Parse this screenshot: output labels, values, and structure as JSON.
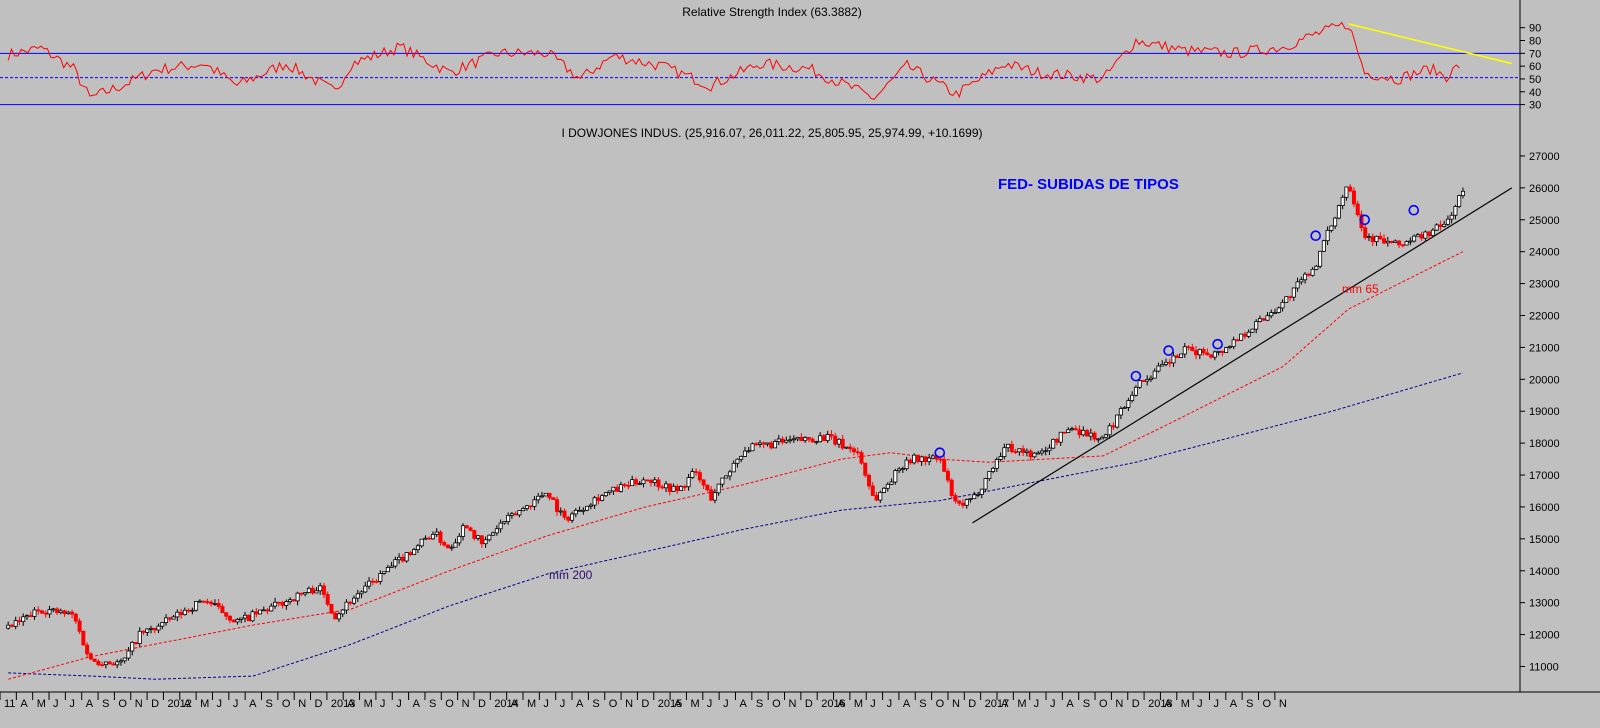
{
  "colors": {
    "background": "#c0c0c0",
    "rsi_line": "#ff0000",
    "rsi_bands": "#0000ff",
    "up_candle": "#000000",
    "down_candle": "#ff0000",
    "ma65": "#ff0000",
    "ma200": "#00008b",
    "trendline": "#000000",
    "rsi_trendline": "#ffff00",
    "annotation_blue": "#0000ff",
    "marker_circle": "#0000ff"
  },
  "rsi_panel": {
    "title": "Relative Strength Index (63.3882)",
    "ticks": [
      "90",
      "80",
      "70",
      "60",
      "50",
      "40",
      "30"
    ],
    "ylim": [
      25,
      96
    ],
    "upper_band": 70,
    "mid_band": 51,
    "lower_band": 30
  },
  "price_panel": {
    "title": "I DOWJONES INDUS. (25,916.07, 26,011.22, 25,805.95, 25,974.99, +10.1699)",
    "ticks": [
      "27000",
      "26000",
      "25000",
      "24000",
      "23000",
      "22000",
      "21000",
      "20000",
      "19000",
      "18000",
      "17000",
      "16000",
      "15000",
      "14000",
      "13000",
      "12000",
      "11000"
    ],
    "ylim": [
      10200,
      27500
    ],
    "annotation_fed": "FED- SUBIDAS DE TIPOS",
    "label_mm65": "mm 65",
    "label_mm200": "mm 200"
  },
  "x_axis": {
    "labels": [
      "11",
      "A",
      "M",
      "J",
      "J",
      "A",
      "S",
      "O",
      "N",
      "D",
      "2012",
      "A",
      "M",
      "J",
      "J",
      "A",
      "S",
      "O",
      "N",
      "D",
      "2013",
      "A",
      "M",
      "J",
      "J",
      "A",
      "S",
      "O",
      "N",
      "D",
      "2014",
      "A",
      "M",
      "J",
      "J",
      "A",
      "S",
      "O",
      "N",
      "D",
      "2015",
      "A",
      "M",
      "J",
      "J",
      "A",
      "S",
      "O",
      "N",
      "D",
      "2016",
      "A",
      "M",
      "J",
      "J",
      "A",
      "S",
      "O",
      "N",
      "D",
      "2017",
      "A",
      "M",
      "J",
      "J",
      "A",
      "S",
      "O",
      "N",
      "D",
      "2018",
      "A",
      "M",
      "J",
      "J",
      "A",
      "S",
      "O",
      "N"
    ]
  },
  "chart_data": {
    "type": "candlestick",
    "title": "I DOWJONES INDUS. (25,916.07, 26,011.22, 25,805.95, 25,974.99, +10.1699)",
    "time_range": [
      "2011-03",
      "2018-11"
    ],
    "price_anchors": [
      [
        "2011-03",
        12200
      ],
      [
        "2011-05",
        12800
      ],
      [
        "2011-07",
        12600
      ],
      [
        "2011-08",
        11200
      ],
      [
        "2011-10",
        11100
      ],
      [
        "2011-11",
        12000
      ],
      [
        "2011-12",
        12200
      ],
      [
        "2012-03",
        13100
      ],
      [
        "2012-05",
        12400
      ],
      [
        "2012-06",
        12600
      ],
      [
        "2012-10",
        13500
      ],
      [
        "2012-11",
        12600
      ],
      [
        "2012-12",
        13100
      ],
      [
        "2013-05",
        15200
      ],
      [
        "2013-06",
        14700
      ],
      [
        "2013-07",
        15500
      ],
      [
        "2013-08",
        14800
      ],
      [
        "2013-09",
        15400
      ],
      [
        "2013-12",
        16500
      ],
      [
        "2014-01",
        15600
      ],
      [
        "2014-03",
        16300
      ],
      [
        "2014-06",
        16900
      ],
      [
        "2014-08",
        16500
      ],
      [
        "2014-09",
        17100
      ],
      [
        "2014-10",
        16300
      ],
      [
        "2014-12",
        17800
      ],
      [
        "2015-02",
        18000
      ],
      [
        "2015-05",
        18200
      ],
      [
        "2015-07",
        17700
      ],
      [
        "2015-08",
        16200
      ],
      [
        "2015-10",
        17500
      ],
      [
        "2015-12",
        17500
      ],
      [
        "2016-01",
        16000
      ],
      [
        "2016-02",
        16200
      ],
      [
        "2016-04",
        17900
      ],
      [
        "2016-06",
        17600
      ],
      [
        "2016-08",
        18500
      ],
      [
        "2016-10",
        18100
      ],
      [
        "2016-12",
        19800
      ],
      [
        "2017-03",
        20900
      ],
      [
        "2017-05",
        20800
      ],
      [
        "2017-07",
        21600
      ],
      [
        "2017-09",
        22400
      ],
      [
        "2017-11",
        23600
      ],
      [
        "2018-01",
        26200
      ],
      [
        "2018-02",
        24500
      ],
      [
        "2018-04",
        24200
      ],
      [
        "2018-06",
        24600
      ],
      [
        "2018-07",
        24900
      ],
      [
        "2018-08",
        25900
      ]
    ],
    "ma65_anchors": [
      [
        "2011-03",
        10600
      ],
      [
        "2011-08",
        11300
      ],
      [
        "2011-12",
        11700
      ],
      [
        "2012-06",
        12300
      ],
      [
        "2012-12",
        12800
      ],
      [
        "2013-06",
        14000
      ],
      [
        "2013-12",
        15100
      ],
      [
        "2014-06",
        16000
      ],
      [
        "2014-12",
        16700
      ],
      [
        "2015-06",
        17500
      ],
      [
        "2015-09",
        17700
      ],
      [
        "2015-12",
        17500
      ],
      [
        "2016-03",
        17400
      ],
      [
        "2016-10",
        17600
      ],
      [
        "2017-02",
        18600
      ],
      [
        "2017-09",
        20400
      ],
      [
        "2018-01",
        22200
      ],
      [
        "2018-08",
        24000
      ]
    ],
    "ma200_anchors": [
      [
        "2011-03",
        10800
      ],
      [
        "2011-08",
        10700
      ],
      [
        "2011-12",
        10600
      ],
      [
        "2012-06",
        10700
      ],
      [
        "2012-12",
        11700
      ],
      [
        "2013-06",
        12900
      ],
      [
        "2013-12",
        13900
      ],
      [
        "2014-06",
        14600
      ],
      [
        "2014-12",
        15300
      ],
      [
        "2015-06",
        15900
      ],
      [
        "2015-12",
        16200
      ],
      [
        "2016-06",
        16800
      ],
      [
        "2016-12",
        17400
      ],
      [
        "2017-06",
        18200
      ],
      [
        "2017-12",
        19000
      ],
      [
        "2018-08",
        20200
      ]
    ],
    "trendline": [
      [
        "2016-02",
        15500
      ],
      [
        "2018-11",
        26000
      ]
    ],
    "rsi_anchors": [
      [
        "2011-03",
        69
      ],
      [
        "2011-05",
        74
      ],
      [
        "2011-07",
        58
      ],
      [
        "2011-08",
        35
      ],
      [
        "2011-10",
        45
      ],
      [
        "2011-12",
        57
      ],
      [
        "2012-03",
        62
      ],
      [
        "2012-05",
        45
      ],
      [
        "2012-08",
        62
      ],
      [
        "2012-11",
        40
      ],
      [
        "2012-12",
        62
      ],
      [
        "2013-03",
        75
      ],
      [
        "2013-06",
        55
      ],
      [
        "2013-09",
        70
      ],
      [
        "2013-12",
        70
      ],
      [
        "2014-02",
        50
      ],
      [
        "2014-04",
        68
      ],
      [
        "2014-07",
        60
      ],
      [
        "2014-10",
        45
      ],
      [
        "2015-01",
        62
      ],
      [
        "2015-04",
        58
      ],
      [
        "2015-08",
        35
      ],
      [
        "2015-10",
        60
      ],
      [
        "2016-01",
        38
      ],
      [
        "2016-04",
        62
      ],
      [
        "2016-06",
        55
      ],
      [
        "2016-10",
        50
      ],
      [
        "2016-12",
        80
      ],
      [
        "2017-03",
        72
      ],
      [
        "2017-06",
        70
      ],
      [
        "2017-09",
        75
      ],
      [
        "2017-11",
        85
      ],
      [
        "2018-01",
        93
      ],
      [
        "2018-02",
        55
      ],
      [
        "2018-04",
        50
      ],
      [
        "2018-06",
        58
      ],
      [
        "2018-07",
        52
      ],
      [
        "2018-08",
        63
      ]
    ],
    "rsi_trendline": [
      [
        "2018-01",
        93
      ],
      [
        "2018-11",
        62
      ]
    ],
    "marker_circles": [
      [
        "2015-12",
        17700
      ],
      [
        "2016-12",
        20100
      ],
      [
        "2017-02",
        20900
      ],
      [
        "2017-05",
        21100
      ],
      [
        "2017-11",
        24500
      ],
      [
        "2018-02",
        25000
      ],
      [
        "2018-05",
        25300
      ]
    ]
  }
}
